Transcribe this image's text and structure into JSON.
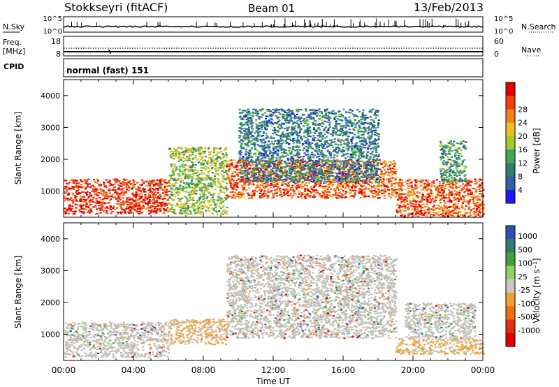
{
  "header": {
    "station": "Stokkseyri (fitACF)",
    "beam": "Beam 01",
    "date": "13/Feb/2013"
  },
  "nsky_panel": {
    "left_label": "N.Sky",
    "right_label": "N.Search",
    "left_ticks": [
      "10^5",
      "10^0"
    ],
    "right_ticks": [
      "10^5",
      "10^0"
    ]
  },
  "freq_panel": {
    "left_label_line1": "Freq.",
    "left_label_line2": "[MHz]",
    "right_label": "Nave",
    "left_ticks": [
      "18",
      "8"
    ],
    "right_ticks": [
      "60",
      "0"
    ]
  },
  "cpid_panel": {
    "label": "CPID",
    "value": "normal (fast) 151"
  },
  "colors": {
    "power_scale": [
      "#1a1aff",
      "#2f5fa8",
      "#2f7d6a",
      "#3fa85a",
      "#a8c830",
      "#f0c020",
      "#f08020",
      "#f04010",
      "#e00000"
    ],
    "velocity_scale": [
      "#2f4fb8",
      "#2f7d6a",
      "#3fa040",
      "#90d060",
      "#c8c8c0",
      "#f0a030",
      "#f07010",
      "#e03010",
      "#e00000"
    ],
    "ground_scatter": "#c0c0b8"
  },
  "chart_data": [
    {
      "type": "heatmap",
      "title": "Power",
      "xlabel": "Time UT",
      "ylabel": "Slant Range [km]",
      "x_ticks": [
        "00:00",
        "04:00",
        "08:00",
        "12:00",
        "16:00",
        "20:00",
        "00:00"
      ],
      "y_ticks": [
        "1000",
        "2000",
        "3000",
        "4000"
      ],
      "ylim": [
        180,
        4500
      ],
      "xlim_hours": [
        0,
        24
      ],
      "colorbar": {
        "label": "Power [dB]",
        "ticks": [
          "4",
          "8",
          "12",
          "16",
          "20",
          "24",
          "28"
        ],
        "range": [
          0,
          30
        ]
      },
      "regions": [
        {
          "t": [
            0,
            6
          ],
          "r": [
            300,
            1400
          ],
          "value": 26
        },
        {
          "t": [
            6,
            9.3
          ],
          "r": [
            300,
            2400
          ],
          "value": 14
        },
        {
          "t": [
            9.3,
            19
          ],
          "r": [
            800,
            2000
          ],
          "value": 24
        },
        {
          "t": [
            10,
            18
          ],
          "r": [
            1300,
            3600
          ],
          "value": 8
        },
        {
          "t": [
            19,
            24
          ],
          "r": [
            200,
            1400
          ],
          "value": 24
        },
        {
          "t": [
            21.5,
            23
          ],
          "r": [
            1300,
            2600
          ],
          "value": 10
        }
      ]
    },
    {
      "type": "heatmap",
      "title": "Velocity",
      "xlabel": "Time UT",
      "ylabel": "Slant Range [km]",
      "x_ticks": [
        "00:00",
        "04:00",
        "08:00",
        "12:00",
        "16:00",
        "20:00",
        "00:00"
      ],
      "y_ticks": [
        "1000",
        "2000",
        "3000",
        "4000"
      ],
      "ylim": [
        180,
        4500
      ],
      "xlim_hours": [
        0,
        24
      ],
      "colorbar": {
        "label": "Velocity [m s⁻¹]",
        "ticks": [
          "1000",
          "500",
          "100",
          "25",
          "-25",
          "-100",
          "-500",
          "-1000"
        ],
        "range": [
          -1200,
          1200
        ]
      },
      "regions": [
        {
          "t": [
            0,
            6
          ],
          "r": [
            300,
            1400
          ],
          "value": 80,
          "ground": true
        },
        {
          "t": [
            6,
            9.3
          ],
          "r": [
            700,
            1500
          ],
          "value": -150
        },
        {
          "t": [
            9.3,
            19
          ],
          "r": [
            900,
            3500
          ],
          "value": 0,
          "ground": true
        },
        {
          "t": [
            19,
            24
          ],
          "r": [
            400,
            900
          ],
          "value": -150
        },
        {
          "t": [
            19.5,
            23.5
          ],
          "r": [
            900,
            2000
          ],
          "value": 0,
          "ground": true
        }
      ]
    }
  ]
}
